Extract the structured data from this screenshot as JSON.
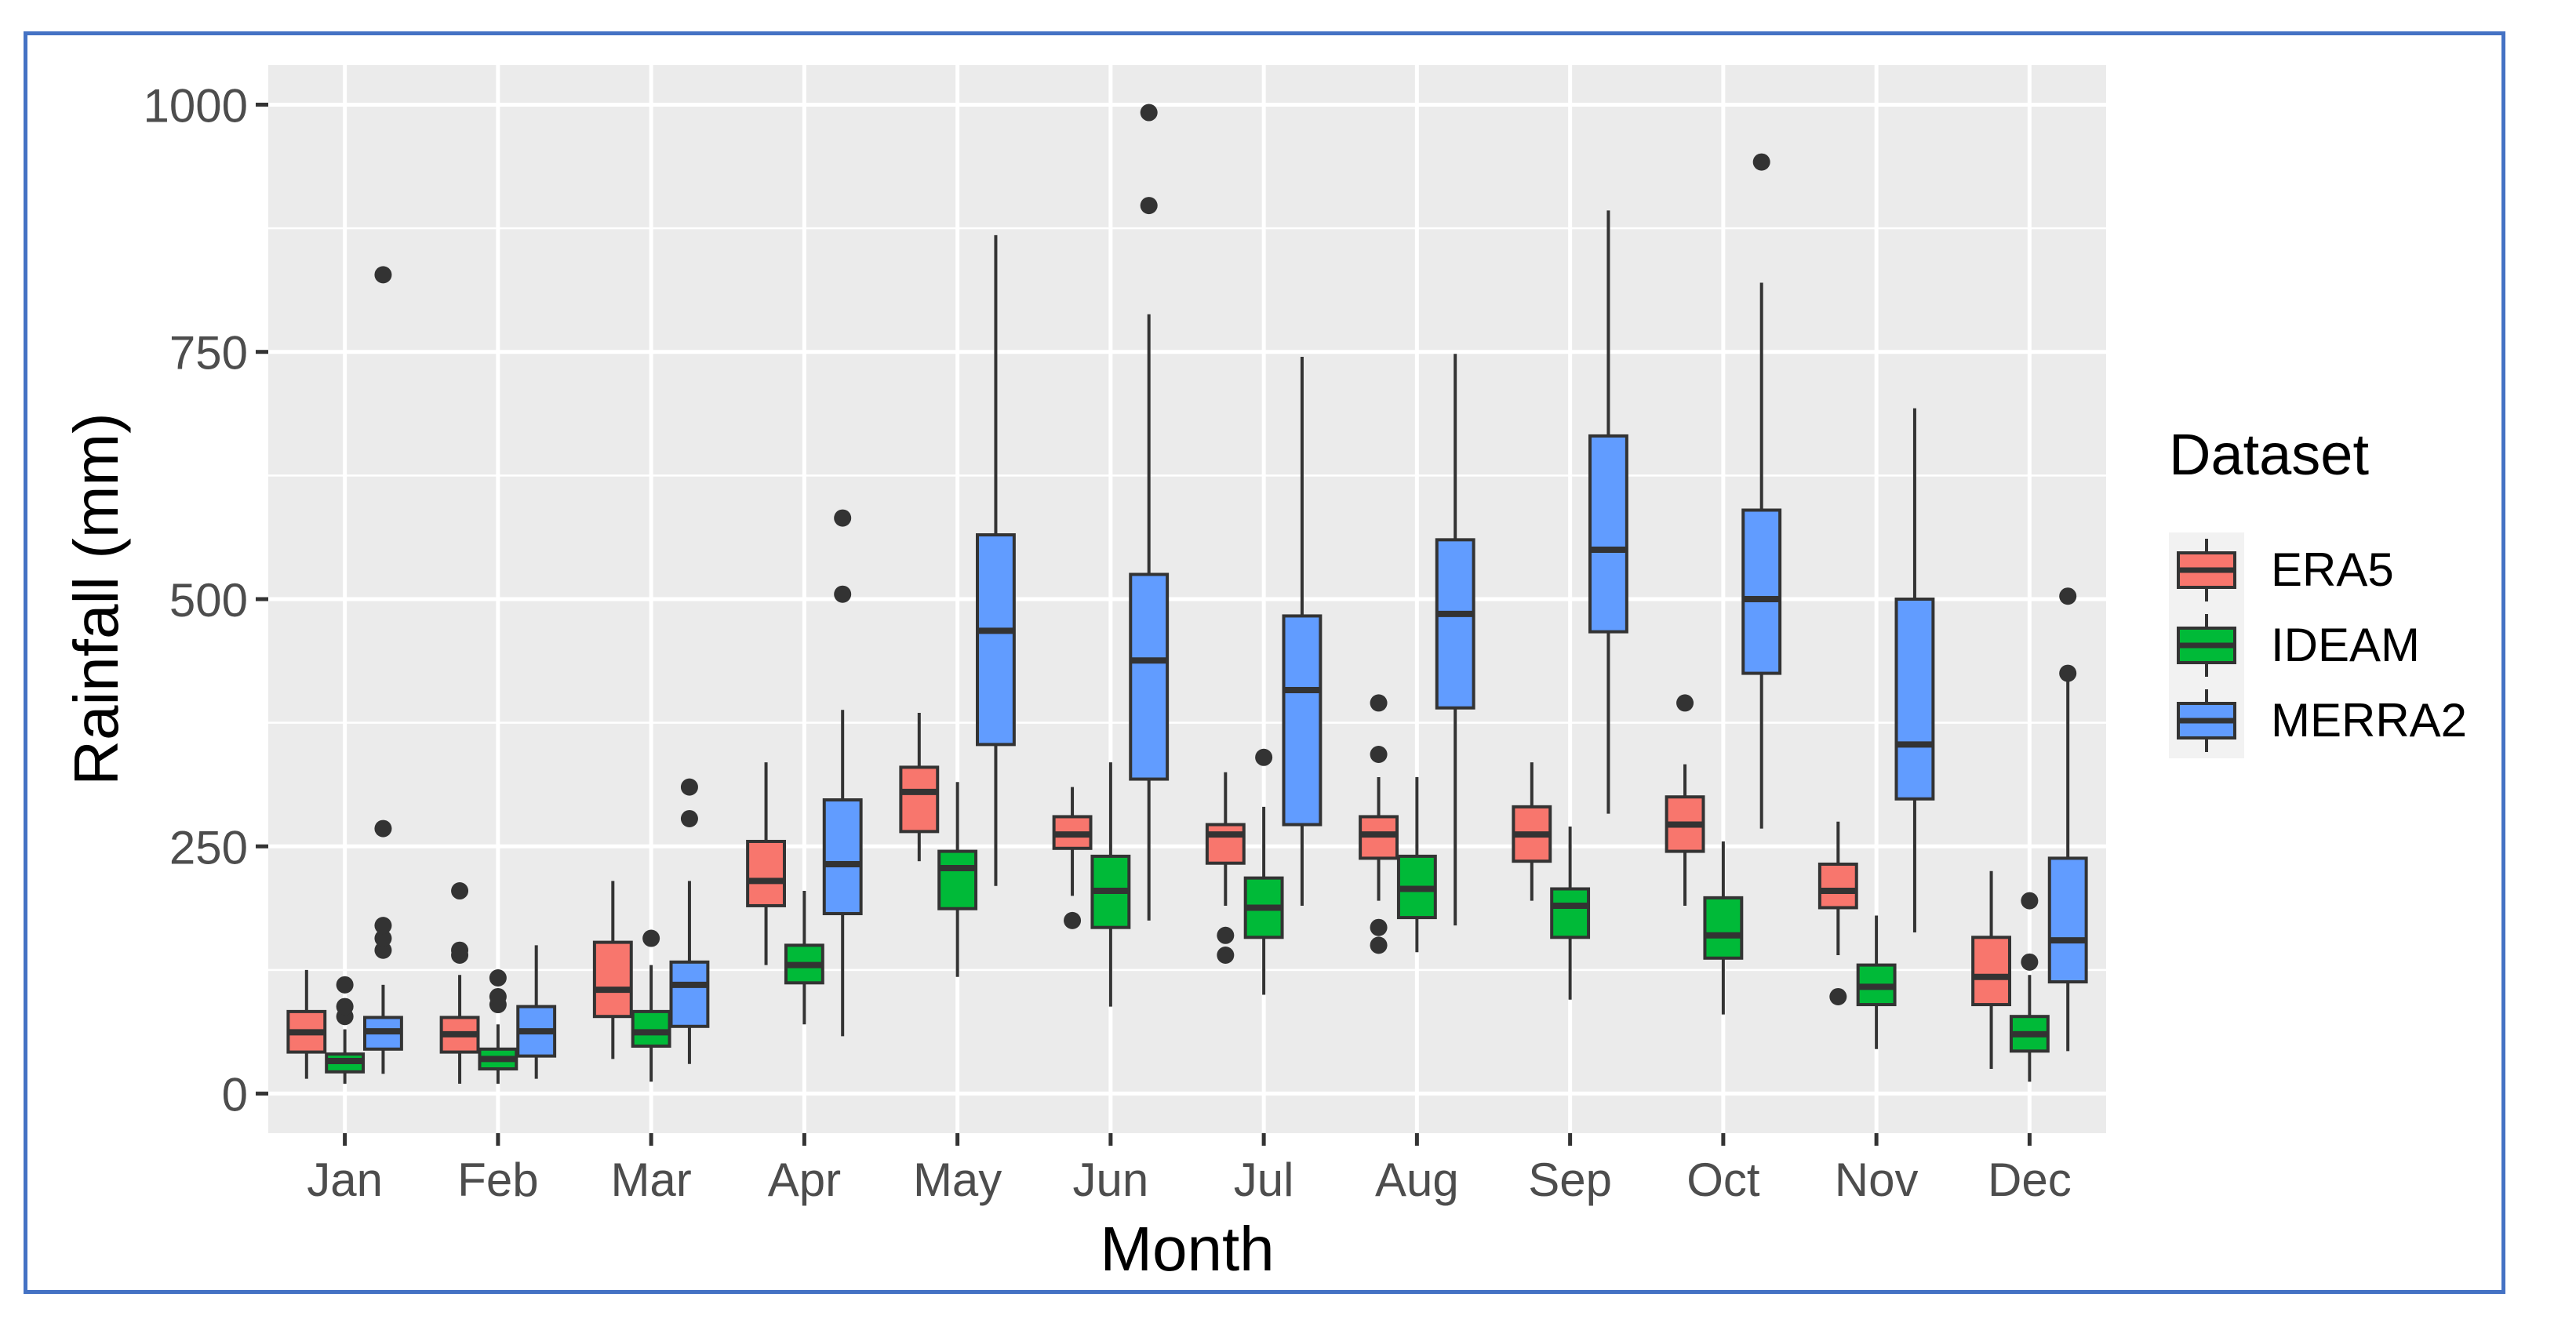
{
  "chart_data": {
    "type": "boxplot",
    "title": "",
    "xlabel": "Month",
    "ylabel": "Rainfall (mm)",
    "ylim": [
      -40,
      1040
    ],
    "yticks": [
      0,
      250,
      500,
      750,
      1000
    ],
    "categories": [
      "Jan",
      "Feb",
      "Mar",
      "Apr",
      "May",
      "Jun",
      "Jul",
      "Aug",
      "Sep",
      "Oct",
      "Nov",
      "Dec"
    ],
    "legend": {
      "title": "Dataset",
      "position": "right"
    },
    "series": [
      {
        "name": "ERA5",
        "color": "#F8766D",
        "boxes": [
          {
            "whisker_low": 15,
            "q1": 42,
            "median": 62,
            "q3": 83,
            "whisker_high": 125,
            "outliers": []
          },
          {
            "whisker_low": 10,
            "q1": 42,
            "median": 60,
            "q3": 77,
            "whisker_high": 120,
            "outliers": [
              140,
              145,
              205
            ]
          },
          {
            "whisker_low": 35,
            "q1": 78,
            "median": 105,
            "q3": 153,
            "whisker_high": 215,
            "outliers": []
          },
          {
            "whisker_low": 130,
            "q1": 190,
            "median": 215,
            "q3": 255,
            "whisker_high": 335,
            "outliers": []
          },
          {
            "whisker_low": 235,
            "q1": 265,
            "median": 305,
            "q3": 330,
            "whisker_high": 385,
            "outliers": []
          },
          {
            "whisker_low": 200,
            "q1": 248,
            "median": 262,
            "q3": 280,
            "whisker_high": 310,
            "outliers": [
              175
            ]
          },
          {
            "whisker_low": 190,
            "q1": 233,
            "median": 262,
            "q3": 272,
            "whisker_high": 325,
            "outliers": [
              140,
              160
            ]
          },
          {
            "whisker_low": 195,
            "q1": 238,
            "median": 262,
            "q3": 280,
            "whisker_high": 320,
            "outliers": [
              150,
              168,
              343,
              395
            ]
          },
          {
            "whisker_low": 195,
            "q1": 235,
            "median": 262,
            "q3": 290,
            "whisker_high": 335,
            "outliers": []
          },
          {
            "whisker_low": 190,
            "q1": 245,
            "median": 272,
            "q3": 300,
            "whisker_high": 333,
            "outliers": [
              395
            ]
          },
          {
            "whisker_low": 140,
            "q1": 188,
            "median": 205,
            "q3": 232,
            "whisker_high": 275,
            "outliers": [
              98
            ]
          },
          {
            "whisker_low": 25,
            "q1": 90,
            "median": 118,
            "q3": 158,
            "whisker_high": 225,
            "outliers": []
          }
        ]
      },
      {
        "name": "IDEAM",
        "color": "#00BA38",
        "boxes": [
          {
            "whisker_low": 10,
            "q1": 22,
            "median": 33,
            "q3": 40,
            "whisker_high": 65,
            "outliers": [
              78,
              88,
              110
            ]
          },
          {
            "whisker_low": 10,
            "q1": 25,
            "median": 35,
            "q3": 45,
            "whisker_high": 70,
            "outliers": [
              90,
              98,
              117
            ]
          },
          {
            "whisker_low": 12,
            "q1": 48,
            "median": 62,
            "q3": 83,
            "whisker_high": 130,
            "outliers": [
              157
            ]
          },
          {
            "whisker_low": 70,
            "q1": 112,
            "median": 130,
            "q3": 150,
            "whisker_high": 205,
            "outliers": []
          },
          {
            "whisker_low": 118,
            "q1": 187,
            "median": 228,
            "q3": 245,
            "whisker_high": 315,
            "outliers": []
          },
          {
            "whisker_low": 88,
            "q1": 168,
            "median": 205,
            "q3": 240,
            "whisker_high": 335,
            "outliers": []
          },
          {
            "whisker_low": 100,
            "q1": 158,
            "median": 188,
            "q3": 218,
            "whisker_high": 290,
            "outliers": [
              340
            ]
          },
          {
            "whisker_low": 143,
            "q1": 178,
            "median": 207,
            "q3": 240,
            "whisker_high": 320,
            "outliers": []
          },
          {
            "whisker_low": 95,
            "q1": 158,
            "median": 190,
            "q3": 207,
            "whisker_high": 270,
            "outliers": []
          },
          {
            "whisker_low": 80,
            "q1": 137,
            "median": 160,
            "q3": 198,
            "whisker_high": 255,
            "outliers": []
          },
          {
            "whisker_low": 45,
            "q1": 90,
            "median": 108,
            "q3": 130,
            "whisker_high": 180,
            "outliers": []
          },
          {
            "whisker_low": 12,
            "q1": 43,
            "median": 60,
            "q3": 78,
            "whisker_high": 120,
            "outliers": [
              133,
              195
            ]
          }
        ]
      },
      {
        "name": "MERRA2",
        "color": "#619CFF",
        "boxes": [
          {
            "whisker_low": 20,
            "q1": 45,
            "median": 63,
            "q3": 77,
            "whisker_high": 110,
            "outliers": [
              145,
              157,
              170,
              268,
              828
            ]
          },
          {
            "whisker_low": 15,
            "q1": 38,
            "median": 63,
            "q3": 88,
            "whisker_high": 150,
            "outliers": []
          },
          {
            "whisker_low": 30,
            "q1": 68,
            "median": 110,
            "q3": 133,
            "whisker_high": 215,
            "outliers": [
              278,
              310
            ]
          },
          {
            "whisker_low": 58,
            "q1": 182,
            "median": 232,
            "q3": 297,
            "whisker_high": 388,
            "outliers": [
              505,
              582
            ]
          },
          {
            "whisker_low": 210,
            "q1": 353,
            "median": 468,
            "q3": 565,
            "whisker_high": 868,
            "outliers": []
          },
          {
            "whisker_low": 175,
            "q1": 318,
            "median": 438,
            "q3": 525,
            "whisker_high": 788,
            "outliers": [
              898,
              992
            ]
          },
          {
            "whisker_low": 190,
            "q1": 272,
            "median": 408,
            "q3": 483,
            "whisker_high": 745,
            "outliers": []
          },
          {
            "whisker_low": 170,
            "q1": 390,
            "median": 485,
            "q3": 560,
            "whisker_high": 748,
            "outliers": []
          },
          {
            "whisker_low": 283,
            "q1": 467,
            "median": 550,
            "q3": 665,
            "whisker_high": 893,
            "outliers": []
          },
          {
            "whisker_low": 268,
            "q1": 425,
            "median": 500,
            "q3": 590,
            "whisker_high": 820,
            "outliers": [
              942
            ]
          },
          {
            "whisker_low": 163,
            "q1": 298,
            "median": 353,
            "q3": 500,
            "whisker_high": 693,
            "outliers": []
          },
          {
            "whisker_low": 43,
            "q1": 113,
            "median": 155,
            "q3": 238,
            "whisker_high": 418,
            "outliers": [
              425,
              503
            ]
          }
        ]
      }
    ]
  }
}
